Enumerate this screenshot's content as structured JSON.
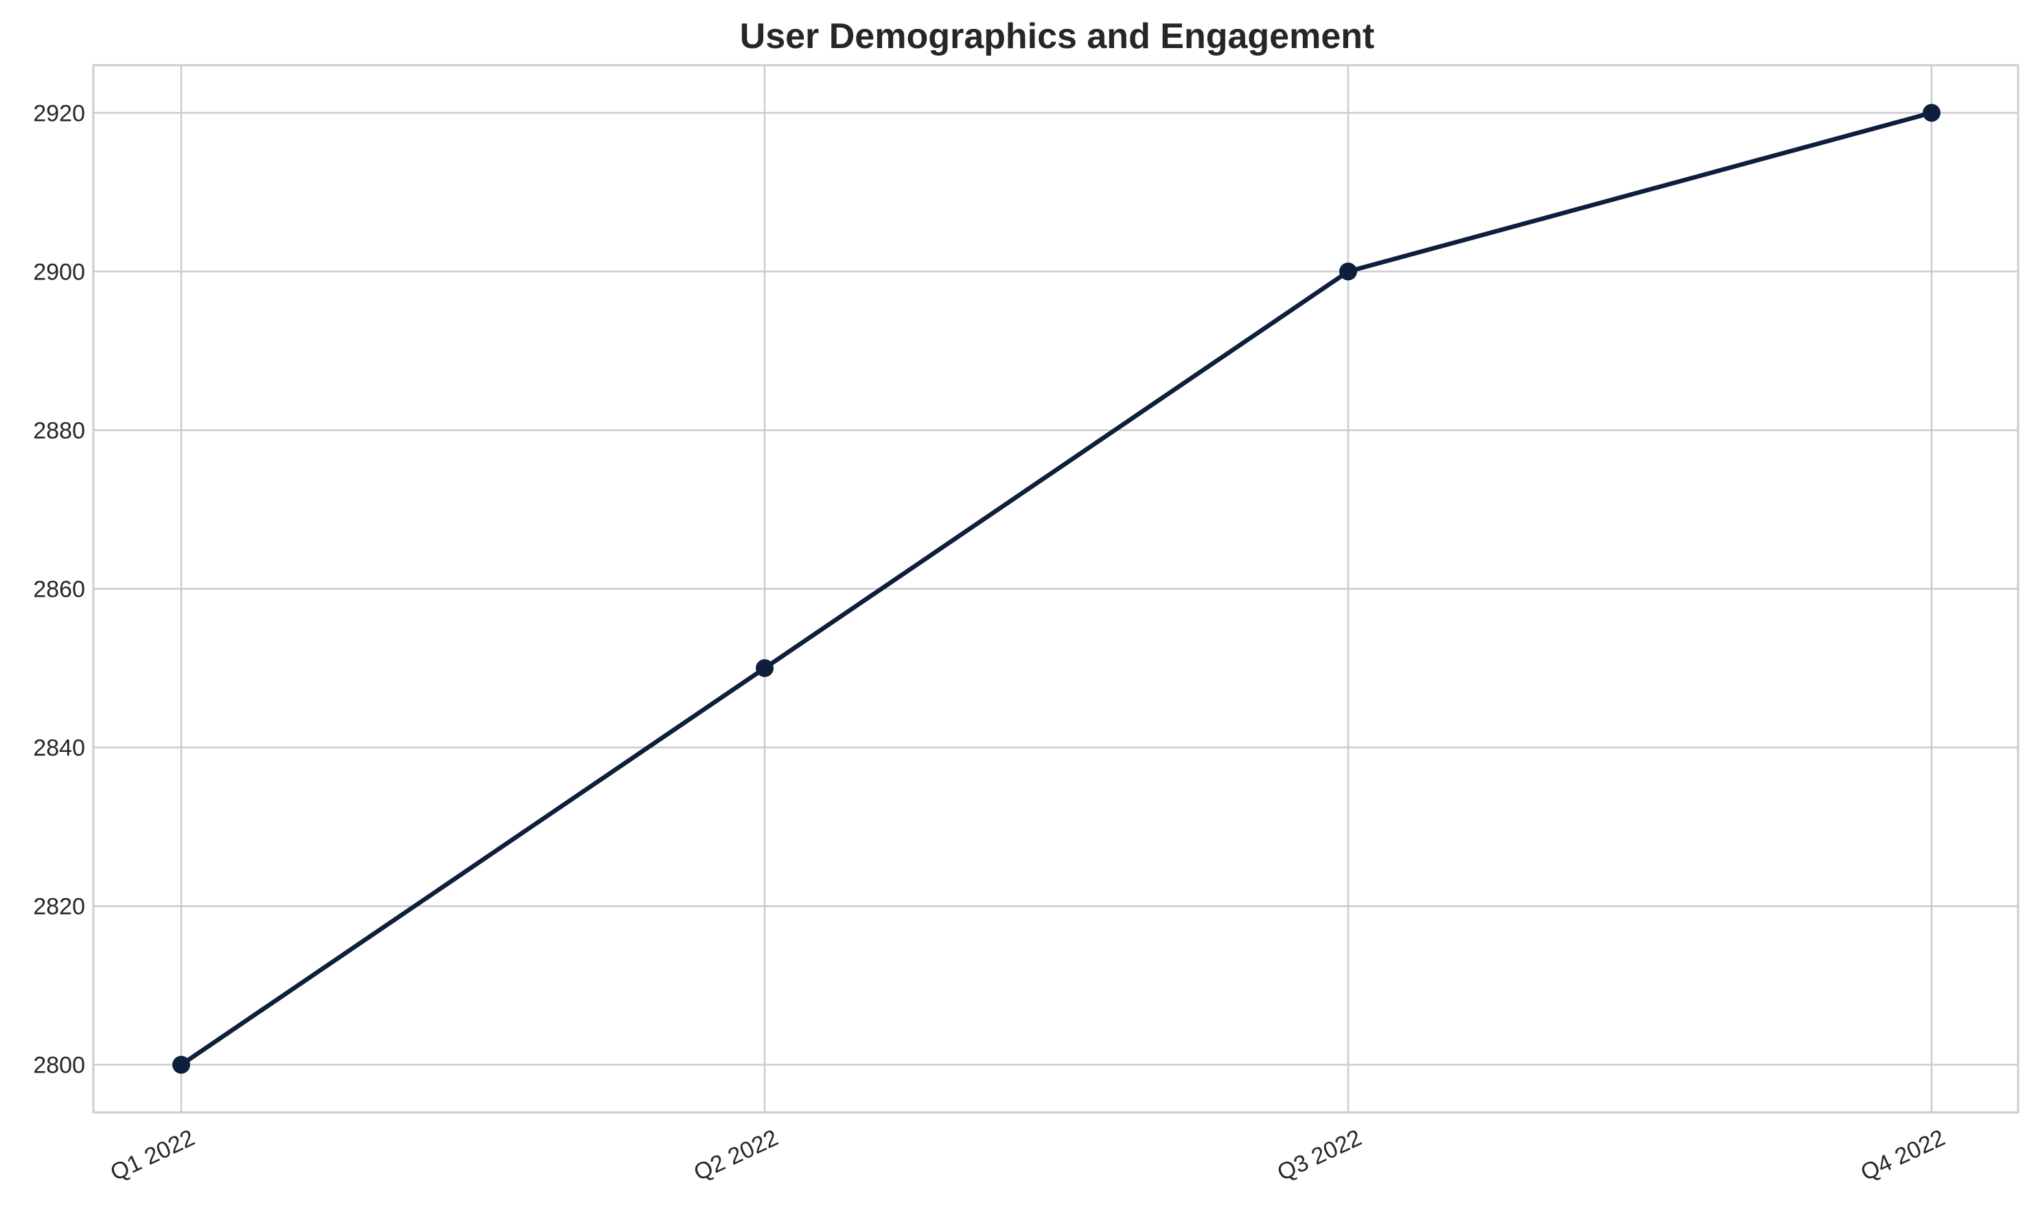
{
  "chart_data": {
    "type": "line",
    "title": "User Demographics and Engagement",
    "xlabel": "",
    "ylabel": "",
    "categories": [
      "Q1 2022",
      "Q2 2022",
      "Q3 2022",
      "Q4 2022"
    ],
    "series": [
      {
        "values": [
          2800,
          2850,
          2900,
          2920
        ],
        "color": "#0d1f3d",
        "marker": "circle"
      }
    ],
    "yticks": [
      2800,
      2820,
      2840,
      2860,
      2880,
      2900,
      2920
    ],
    "ylim": [
      2794,
      2926
    ],
    "grid": true,
    "legend": "none"
  }
}
